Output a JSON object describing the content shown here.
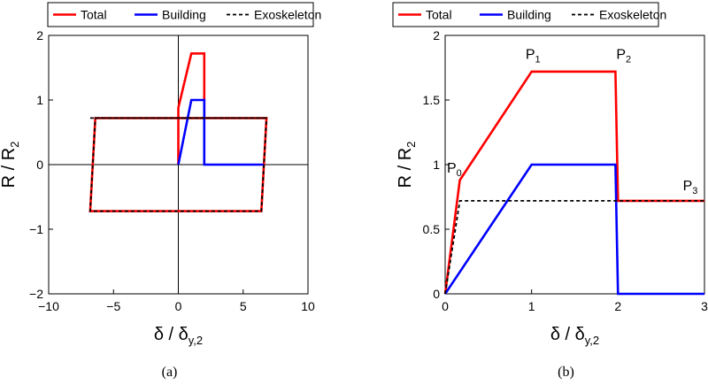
{
  "chart_data": [
    {
      "type": "line",
      "caption": "(a)",
      "xlabel": "δ / δy,2",
      "ylabel": "R / R2",
      "xlim": [
        -10,
        10
      ],
      "ylim": [
        -2,
        2
      ],
      "xticks": [
        -10,
        -5,
        0,
        5,
        10
      ],
      "yticks": [
        -2,
        -1,
        0,
        1,
        2
      ],
      "zero_axes": true,
      "grid": false,
      "legend": "top",
      "series": [
        {
          "name": "Total",
          "color": "#ff0000",
          "style": "solid",
          "x": [
            0,
            0,
            1,
            2,
            2,
            6.8,
            6.4,
            -6.8,
            -6.4,
            6.8
          ],
          "y": [
            0,
            0.88,
            1.72,
            1.72,
            0.72,
            0.72,
            -0.72,
            -0.72,
            0.72,
            0.72
          ]
        },
        {
          "name": "Building",
          "color": "#0000ff",
          "style": "solid",
          "x": [
            0,
            1,
            2,
            2,
            6.6
          ],
          "y": [
            0,
            1,
            1,
            0,
            0
          ]
        },
        {
          "name": "Exoskeleton",
          "color": "#000000",
          "style": "dashed",
          "x": [
            -6.8,
            6.8,
            6.4,
            -6.8,
            -6.4,
            6.8
          ],
          "y": [
            0.72,
            0.72,
            -0.72,
            -0.72,
            0.72,
            0.72
          ]
        }
      ]
    },
    {
      "type": "line",
      "caption": "(b)",
      "xlabel": "δ / δy,2",
      "ylabel": "R / R2",
      "xlim": [
        0,
        3
      ],
      "ylim": [
        0,
        2
      ],
      "xticks": [
        0,
        1,
        2,
        3
      ],
      "yticks": [
        0,
        0.5,
        1,
        1.5,
        2
      ],
      "grid": false,
      "legend": "top",
      "series": [
        {
          "name": "Total",
          "color": "#ff0000",
          "style": "solid",
          "x": [
            0,
            0.17,
            1,
            1.97,
            2,
            3
          ],
          "y": [
            0,
            0.88,
            1.72,
            1.72,
            0.72,
            0.72
          ]
        },
        {
          "name": "Building",
          "color": "#0000ff",
          "style": "solid",
          "x": [
            0,
            1,
            1.97,
            2,
            3
          ],
          "y": [
            0,
            1,
            1,
            0,
            0
          ]
        },
        {
          "name": "Exoskeleton",
          "color": "#000000",
          "style": "dashed",
          "x": [
            0,
            0.17,
            3
          ],
          "y": [
            0,
            0.72,
            0.72
          ]
        }
      ],
      "annotations": [
        {
          "label": "P",
          "sub": "0",
          "x": 0.02,
          "y": 0.94
        },
        {
          "label": "P",
          "sub": "1",
          "x": 0.93,
          "y": 1.82
        },
        {
          "label": "P",
          "sub": "2",
          "x": 1.98,
          "y": 1.82
        },
        {
          "label": "P",
          "sub": "3",
          "x": 2.75,
          "y": 0.8
        }
      ]
    }
  ]
}
